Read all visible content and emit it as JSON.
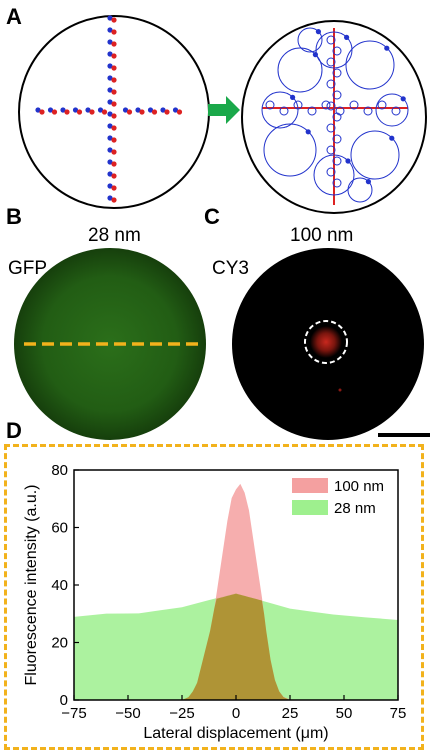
{
  "panels": {
    "a": {
      "letter": "A"
    },
    "b": {
      "letter": "B",
      "size_label": "28 nm",
      "channel_label": "GFP"
    },
    "c": {
      "letter": "C",
      "size_label": "100 nm",
      "channel_label": "CY3"
    },
    "d": {
      "letter": "D"
    }
  },
  "colors": {
    "gfp_green": "#1f5a12",
    "cy3_red": "#c8281e",
    "dash_yellow": "#f2b21c",
    "arrow_green": "#1aa84a",
    "particle_blue": "#2233cc",
    "particle_red": "#dd2222",
    "series_100": "#f4a0a0",
    "series_28": "#9ef08e"
  },
  "chart_data": {
    "type": "area",
    "xlabel": "Lateral displacement (μm)",
    "ylabel": "Fluorescence intensity (a.u.)",
    "xlim": [
      -75,
      75
    ],
    "ylim": [
      0,
      80
    ],
    "xticks": [
      "−75",
      "−50",
      "−25",
      "0",
      "25",
      "50",
      "75"
    ],
    "xtick_values": [
      -75,
      -50,
      -25,
      0,
      25,
      50,
      75
    ],
    "yticks": [
      "0",
      "20",
      "40",
      "60",
      "80"
    ],
    "ytick_values": [
      0,
      20,
      40,
      60,
      80
    ],
    "legend_position": "top-right",
    "series": [
      {
        "name": "100 nm",
        "color": "#f4a0a0",
        "x": [
          -25,
          -22,
          -20,
          -18,
          -16,
          -14,
          -12,
          -10,
          -8,
          -6,
          -4,
          -2,
          0,
          2,
          4,
          6,
          8,
          10,
          12,
          14,
          16,
          18,
          20,
          22,
          25
        ],
        "y": [
          0,
          1,
          3,
          6,
          12,
          18,
          24,
          32,
          42,
          52,
          62,
          70,
          73,
          75,
          72,
          66,
          56,
          46,
          36,
          24,
          14,
          7,
          3,
          1,
          0
        ]
      },
      {
        "name": "28 nm",
        "color": "#9ef08e",
        "x": [
          -75,
          -60,
          -45,
          -35,
          -25,
          -15,
          -5,
          0,
          5,
          15,
          25,
          35,
          45,
          60,
          75
        ],
        "y": [
          29,
          30,
          30,
          31,
          32,
          34,
          36,
          37,
          36,
          34,
          32,
          31,
          30,
          29,
          28
        ]
      }
    ]
  }
}
